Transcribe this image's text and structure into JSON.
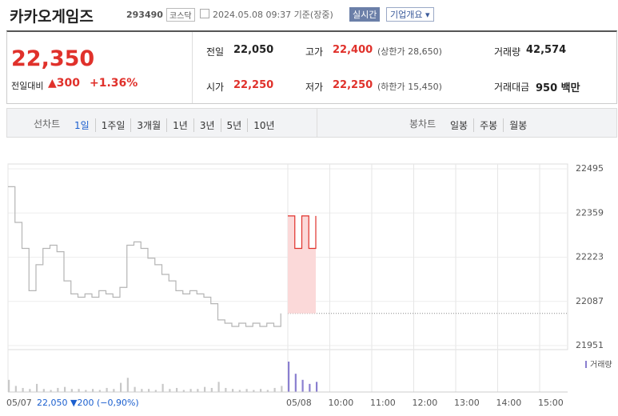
{
  "header": {
    "name": "카카오게임즈",
    "code": "293490",
    "market": "코스닥",
    "time": "2024.05.08 09:37 기준(장중)",
    "realtime": "실시간",
    "company": "기업개요 ▾"
  },
  "summary": {
    "price": "22,350",
    "change_label": "전일대비",
    "change": "▲300",
    "rate": "+1.36%",
    "rows": [
      [
        [
          "전일",
          "22,050",
          ""
        ],
        [
          "고가",
          "22,400",
          "(상한가 28,650)"
        ],
        [
          "거래량",
          "42,574",
          ""
        ]
      ],
      [
        [
          "시가",
          "22,250",
          ""
        ],
        [
          "저가",
          "22,250",
          "(하한가 15,450)"
        ],
        [
          "거래대금",
          "950 백만",
          ""
        ]
      ]
    ]
  },
  "tabs": {
    "line_label": "선차트",
    "line": [
      "1일",
      "1주일",
      "3개월",
      "1년",
      "3년",
      "5년",
      "10년"
    ],
    "candle_label": "봉차트",
    "candle": [
      "일봉",
      "주봉",
      "월봉"
    ]
  },
  "footer": {
    "prev": "22,050 ▼200 (−0,90%)"
  },
  "chart_data": {
    "type": "line",
    "categories": [
      "05/07",
      null,
      null,
      null,
      null,
      null,
      null,
      null,
      null,
      null,
      null,
      null,
      null,
      null,
      null,
      null,
      null,
      null,
      null,
      null,
      null,
      null,
      null,
      null,
      null,
      null,
      null,
      null,
      null,
      null,
      null,
      null,
      null,
      null,
      null,
      null,
      null,
      null,
      null,
      null,
      "05/08",
      null,
      null,
      null,
      null,
      null,
      "10:00",
      null,
      null,
      null,
      null,
      null,
      "11:00",
      null,
      null,
      null,
      null,
      null,
      "12:00",
      null,
      null,
      null,
      null,
      null,
      "13:00",
      null,
      null,
      null,
      null,
      null,
      "14:00",
      null,
      null,
      null,
      null,
      null,
      "15:00",
      null,
      null,
      null
    ],
    "series": [
      {
        "color": "#b5b5b5",
        "values": [
          22440,
          22330,
          22250,
          22120,
          22200,
          22250,
          22260,
          22240,
          22150,
          22110,
          22100,
          22110,
          22100,
          22120,
          22110,
          22100,
          22130,
          22260,
          22270,
          22250,
          22220,
          22200,
          22170,
          22150,
          22120,
          22110,
          22120,
          22110,
          22100,
          22080,
          22030,
          22020,
          22010,
          22020,
          22010,
          22020,
          22010,
          22020,
          22010,
          22050,
          null,
          null,
          null,
          null,
          null,
          null,
          null,
          null,
          null,
          null,
          null,
          null,
          null,
          null,
          null,
          null,
          null,
          null,
          null,
          null,
          null,
          null,
          null,
          null,
          null,
          null,
          null,
          null,
          null,
          null,
          null,
          null,
          null,
          null,
          null,
          null,
          null,
          null,
          null,
          null
        ]
      },
      {
        "color": "#e0312b",
        "fill": "#fbd9d9",
        "values": [
          null,
          null,
          null,
          null,
          null,
          null,
          null,
          null,
          null,
          null,
          null,
          null,
          null,
          null,
          null,
          null,
          null,
          null,
          null,
          null,
          null,
          null,
          null,
          null,
          null,
          null,
          null,
          null,
          null,
          null,
          null,
          null,
          null,
          null,
          null,
          null,
          null,
          null,
          null,
          null,
          22350,
          22250,
          22350,
          22250,
          22350,
          null,
          null,
          null,
          null,
          null,
          null,
          null,
          null,
          null,
          null,
          null,
          null,
          null,
          null,
          null,
          null,
          null,
          null,
          null,
          null,
          null,
          null,
          null,
          null,
          null,
          null,
          null,
          null,
          null,
          null,
          null,
          null,
          null,
          null,
          null
        ]
      }
    ],
    "baseline": 22050,
    "ylim": [
      21951,
      22495
    ],
    "yticks": [
      21951,
      22087,
      22223,
      22359,
      22495
    ],
    "volume": {
      "name": "거래량",
      "color": "#8a7fd0",
      "prev_color": "#c8c8c8",
      "values": [
        12,
        6,
        4,
        3,
        8,
        3,
        2,
        4,
        5,
        3,
        3,
        2,
        3,
        2,
        4,
        3,
        9,
        14,
        5,
        3,
        3,
        2,
        8,
        3,
        4,
        2,
        3,
        3,
        5,
        4,
        10,
        4,
        3,
        2,
        3,
        2,
        3,
        2,
        4,
        6,
        30,
        18,
        12,
        8,
        10,
        null,
        null,
        null,
        null,
        null,
        null,
        null,
        null,
        null,
        null,
        null,
        null,
        null,
        null,
        null,
        null,
        null,
        null,
        null,
        null,
        null,
        null,
        null,
        null,
        null,
        null,
        null,
        null,
        null,
        null,
        null,
        null,
        null,
        null,
        null
      ]
    }
  }
}
